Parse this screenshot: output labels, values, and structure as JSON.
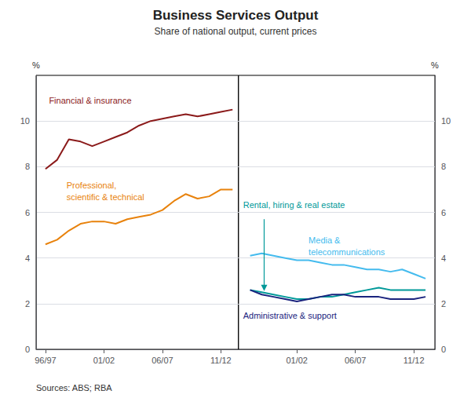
{
  "chart_data": [
    {
      "type": "line",
      "title": "Business Services Output",
      "subtitle": "Share of national output, current prices",
      "annotations": [
        "Sources: ABS; RBA"
      ],
      "ylabel": "%",
      "x": [
        1996,
        1997,
        1998,
        1999,
        2000,
        2001,
        2002,
        2003,
        2004,
        2005,
        2006,
        2007,
        2008,
        2009,
        2010,
        2011,
        2012
      ],
      "xlim": [
        1995.2,
        2012.5
      ],
      "xticks": [
        {
          "value": 1996,
          "label": "96/97"
        },
        {
          "value": 2001,
          "label": "01/02"
        },
        {
          "value": 2006,
          "label": "06/07"
        },
        {
          "value": 2011,
          "label": "11/12"
        }
      ],
      "ylim": [
        0,
        12
      ],
      "yticks": [
        0,
        2,
        4,
        6,
        8,
        10
      ],
      "grid": true,
      "series": [
        {
          "name": "Financial & insurance",
          "color": "#8B1A1A",
          "values": [
            7.9,
            8.3,
            9.2,
            9.1,
            8.9,
            9.1,
            9.3,
            9.5,
            9.8,
            10.0,
            10.1,
            10.2,
            10.3,
            10.2,
            10.3,
            10.4,
            10.5
          ]
        },
        {
          "name": "Professional,\nscientific & technical",
          "color": "#E8820C",
          "values": [
            4.6,
            4.8,
            5.2,
            5.5,
            5.6,
            5.6,
            5.5,
            5.7,
            5.8,
            5.9,
            6.1,
            6.5,
            6.8,
            6.6,
            6.7,
            7.0,
            7.0
          ]
        }
      ]
    },
    {
      "type": "line",
      "ylabel": "%",
      "x": [
        1997,
        1998,
        1999,
        2000,
        2001,
        2002,
        2003,
        2004,
        2005,
        2006,
        2007,
        2008,
        2009,
        2010,
        2011,
        2012
      ],
      "xlim": [
        1996,
        2012.8
      ],
      "xticks": [
        {
          "value": 2001,
          "label": "01/02"
        },
        {
          "value": 2006,
          "label": "06/07"
        },
        {
          "value": 2011,
          "label": "11/12"
        }
      ],
      "ylim": [
        0,
        12
      ],
      "yticks": [
        0,
        2,
        4,
        6,
        8,
        10
      ],
      "grid": true,
      "series": [
        {
          "name": "Rental, hiring & real estate",
          "color": "#009999",
          "values": [
            2.6,
            2.5,
            2.4,
            2.3,
            2.2,
            2.2,
            2.3,
            2.3,
            2.4,
            2.5,
            2.6,
            2.7,
            2.6,
            2.6,
            2.6,
            2.6
          ]
        },
        {
          "name": "Media &\ntelecommunications",
          "color": "#44BBEE",
          "values": [
            4.1,
            4.2,
            4.1,
            4.0,
            3.9,
            3.9,
            3.8,
            3.7,
            3.7,
            3.6,
            3.5,
            3.5,
            3.4,
            3.5,
            3.3,
            3.1
          ]
        },
        {
          "name": "Administrative & support",
          "color": "#1A237E",
          "values": [
            2.6,
            2.4,
            2.3,
            2.2,
            2.1,
            2.2,
            2.3,
            2.4,
            2.4,
            2.3,
            2.3,
            2.3,
            2.2,
            2.2,
            2.2,
            2.3
          ]
        }
      ]
    }
  ]
}
